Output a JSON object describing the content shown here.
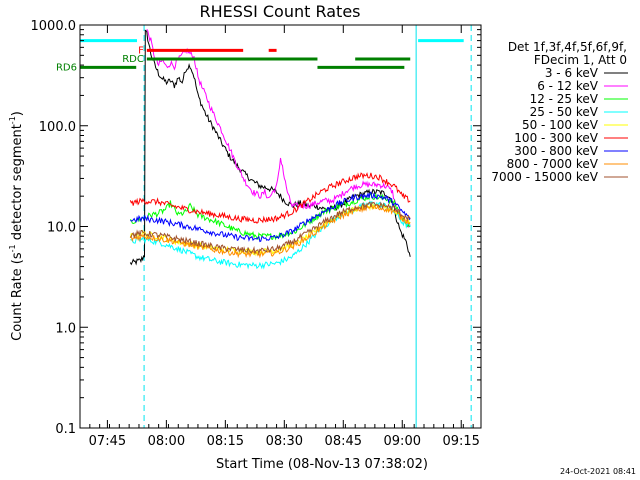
{
  "chart_data": {
    "type": "line",
    "title": "RHESSI Count Rates",
    "xlabel": "Start Time (08-Nov-13 07:38:02)",
    "ylabel": "Count Rate (s⁻¹ detector segment⁻¹)",
    "ylabel_main": "Count Rate (s",
    "ylabel_sup1": "-1",
    "ylabel_mid": " detector segment",
    "ylabel_sup2": "-1",
    "ylabel_end": ")",
    "yscale": "log",
    "ylim": [
      0.1,
      1000
    ],
    "xlim_minutes": [
      0,
      102
    ],
    "x_ticks": [
      {
        "label": "07:45",
        "min": 6.97
      },
      {
        "label": "08:00",
        "min": 21.97
      },
      {
        "label": "08:15",
        "min": 36.97
      },
      {
        "label": "08:30",
        "min": 51.97
      },
      {
        "label": "08:45",
        "min": 66.97
      },
      {
        "label": "09:00",
        "min": 81.97
      },
      {
        "label": "09:15",
        "min": 96.97
      }
    ],
    "y_ticks": [
      {
        "label": "0.1",
        "value": 0.1
      },
      {
        "label": "1.0",
        "value": 1
      },
      {
        "label": "10.0",
        "value": 10
      },
      {
        "label": "100.0",
        "value": 100
      },
      {
        "label": "1000.0",
        "value": 1000
      }
    ],
    "legend_header": [
      "Det 1f,3f,4f,5f,6f,9f,",
      "FDecim 1, Att 0"
    ],
    "series": [
      {
        "name": "3 - 6 keV",
        "color": "#000000",
        "points": [
          [
            12.8,
            4.3
          ],
          [
            15.5,
            4.6
          ],
          [
            16.4,
            5.2
          ],
          [
            16.6,
            850
          ],
          [
            17,
            820
          ],
          [
            18,
            520
          ],
          [
            19,
            400
          ],
          [
            20,
            330
          ],
          [
            21,
            290
          ],
          [
            22,
            270
          ],
          [
            23,
            280
          ],
          [
            24,
            250
          ],
          [
            25,
            300
          ],
          [
            26,
            270
          ],
          [
            27,
            370
          ],
          [
            28,
            400
          ],
          [
            29,
            310
          ],
          [
            30,
            200
          ],
          [
            31,
            160
          ],
          [
            32,
            130
          ],
          [
            33,
            110
          ],
          [
            34,
            95
          ],
          [
            35,
            80
          ],
          [
            36,
            68
          ],
          [
            38,
            50
          ],
          [
            40,
            40
          ],
          [
            42,
            33
          ],
          [
            44,
            28
          ],
          [
            46,
            25
          ],
          [
            48,
            24
          ],
          [
            50,
            22
          ],
          [
            51,
            20
          ],
          [
            52,
            18
          ],
          [
            53,
            17
          ],
          [
            54,
            16
          ],
          [
            56,
            17
          ],
          [
            58,
            16
          ],
          [
            60,
            16
          ],
          [
            62,
            15
          ],
          [
            64,
            15
          ],
          [
            66,
            16
          ],
          [
            68,
            18
          ],
          [
            70,
            20
          ],
          [
            72,
            21
          ],
          [
            74,
            22
          ],
          [
            76,
            22
          ],
          [
            78,
            21
          ],
          [
            79.5,
            18
          ],
          [
            80.5,
            12
          ],
          [
            81.5,
            9
          ],
          [
            83,
            7
          ],
          [
            84,
            5
          ]
        ]
      },
      {
        "name": "6 - 12 keV",
        "color": "#ff00ff",
        "points": [
          [
            17,
            900
          ],
          [
            18,
            700
          ],
          [
            19,
            480
          ],
          [
            20,
            400
          ],
          [
            21,
            450
          ],
          [
            22,
            380
          ],
          [
            23,
            420
          ],
          [
            24,
            390
          ],
          [
            25,
            450
          ],
          [
            26,
            500
          ],
          [
            27,
            560
          ],
          [
            28,
            520
          ],
          [
            29,
            480
          ],
          [
            30,
            310
          ],
          [
            31,
            240
          ],
          [
            32,
            200
          ],
          [
            33,
            160
          ],
          [
            34,
            130
          ],
          [
            36,
            90
          ],
          [
            38,
            60
          ],
          [
            40,
            40
          ],
          [
            42,
            28
          ],
          [
            44,
            22
          ],
          [
            46,
            20
          ],
          [
            47,
            22
          ],
          [
            48,
            19
          ],
          [
            50,
            25
          ],
          [
            50.5,
            32
          ],
          [
            51,
            48
          ],
          [
            51.5,
            40
          ],
          [
            52,
            30
          ],
          [
            53,
            20
          ],
          [
            54,
            16
          ],
          [
            56,
            16
          ],
          [
            58,
            16
          ],
          [
            60,
            17
          ],
          [
            62,
            18
          ],
          [
            64,
            18
          ],
          [
            66,
            20
          ],
          [
            68,
            23
          ],
          [
            70,
            25
          ],
          [
            72,
            26
          ],
          [
            74,
            26
          ],
          [
            76,
            26
          ],
          [
            78,
            25
          ],
          [
            79.5,
            22
          ],
          [
            80.5,
            15
          ],
          [
            82,
            12
          ],
          [
            84,
            10
          ]
        ]
      },
      {
        "name": "12 - 25 keV",
        "color": "#00ff00",
        "points": [
          [
            12.8,
            11
          ],
          [
            16,
            12
          ],
          [
            18,
            13
          ],
          [
            20,
            13.5
          ],
          [
            22,
            15
          ],
          [
            23,
            17
          ],
          [
            25,
            13
          ],
          [
            27,
            14
          ],
          [
            28,
            16
          ],
          [
            30,
            13
          ],
          [
            35,
            11
          ],
          [
            40,
            9
          ],
          [
            45,
            8
          ],
          [
            50,
            8
          ],
          [
            55,
            9
          ],
          [
            58,
            11
          ],
          [
            62,
            14
          ],
          [
            66,
            16
          ],
          [
            70,
            18
          ],
          [
            74,
            20
          ],
          [
            78,
            19
          ],
          [
            80,
            17
          ],
          [
            82,
            12
          ],
          [
            84,
            10
          ]
        ]
      },
      {
        "name": "25 - 50 keV",
        "color": "#00ffff",
        "points": [
          [
            12.8,
            7
          ],
          [
            16,
            7.5
          ],
          [
            20,
            7
          ],
          [
            25,
            6
          ],
          [
            30,
            5
          ],
          [
            35,
            4.5
          ],
          [
            40,
            4.2
          ],
          [
            45,
            4.1
          ],
          [
            50,
            4.3
          ],
          [
            54,
            5
          ],
          [
            58,
            7
          ],
          [
            62,
            10
          ],
          [
            66,
            13
          ],
          [
            70,
            15
          ],
          [
            74,
            17
          ],
          [
            78,
            16
          ],
          [
            80,
            14
          ],
          [
            82,
            11
          ],
          [
            84,
            10
          ]
        ]
      },
      {
        "name": "50 - 100 keV",
        "color": "#ffff00",
        "points": [
          [
            12.8,
            8
          ],
          [
            16,
            8.5
          ],
          [
            20,
            8
          ],
          [
            25,
            7
          ],
          [
            30,
            6.5
          ],
          [
            35,
            6
          ],
          [
            40,
            5.8
          ],
          [
            45,
            5.6
          ],
          [
            50,
            5.8
          ],
          [
            55,
            6.8
          ],
          [
            58,
            8
          ],
          [
            62,
            10.5
          ],
          [
            66,
            13
          ],
          [
            70,
            15
          ],
          [
            74,
            16
          ],
          [
            78,
            15.5
          ],
          [
            80,
            14
          ],
          [
            82,
            12
          ],
          [
            84,
            11
          ]
        ]
      },
      {
        "name": "100 - 300 keV",
        "color": "#ff0000",
        "points": [
          [
            12.8,
            17
          ],
          [
            16,
            18
          ],
          [
            20,
            17.5
          ],
          [
            25,
            15.5
          ],
          [
            30,
            14
          ],
          [
            35,
            13
          ],
          [
            40,
            12
          ],
          [
            45,
            11.5
          ],
          [
            50,
            12
          ],
          [
            54,
            14
          ],
          [
            58,
            18
          ],
          [
            62,
            23
          ],
          [
            66,
            27
          ],
          [
            70,
            31
          ],
          [
            72,
            32
          ],
          [
            74,
            32
          ],
          [
            76,
            31
          ],
          [
            78,
            28
          ],
          [
            80,
            25
          ],
          [
            82,
            20
          ],
          [
            84,
            18
          ]
        ]
      },
      {
        "name": "300 - 800 keV",
        "color": "#0000ff",
        "points": [
          [
            12.8,
            11.5
          ],
          [
            16,
            12
          ],
          [
            20,
            11.5
          ],
          [
            25,
            10.5
          ],
          [
            30,
            9.5
          ],
          [
            35,
            8.5
          ],
          [
            40,
            7.8
          ],
          [
            45,
            7.5
          ],
          [
            50,
            7.8
          ],
          [
            54,
            9
          ],
          [
            58,
            11.5
          ],
          [
            62,
            14
          ],
          [
            66,
            17
          ],
          [
            70,
            19.5
          ],
          [
            74,
            20.5
          ],
          [
            76,
            20
          ],
          [
            78,
            19
          ],
          [
            80,
            17
          ],
          [
            82,
            14
          ],
          [
            84,
            12
          ]
        ]
      },
      {
        "name": "800 - 7000 keV",
        "color": "#ff8c00",
        "points": [
          [
            12.8,
            7.5
          ],
          [
            16,
            8
          ],
          [
            20,
            7.6
          ],
          [
            25,
            7
          ],
          [
            30,
            6.3
          ],
          [
            35,
            5.8
          ],
          [
            40,
            5.4
          ],
          [
            45,
            5.3
          ],
          [
            50,
            5.5
          ],
          [
            54,
            6.3
          ],
          [
            58,
            7.8
          ],
          [
            62,
            10
          ],
          [
            66,
            12.5
          ],
          [
            70,
            14.5
          ],
          [
            74,
            15.5
          ],
          [
            78,
            15
          ],
          [
            80,
            14
          ],
          [
            82,
            12
          ],
          [
            84,
            11
          ]
        ]
      },
      {
        "name": "7000 - 15000 keV",
        "color": "#a0522d",
        "points": [
          [
            12.8,
            8.2
          ],
          [
            16,
            8.6
          ],
          [
            20,
            8.2
          ],
          [
            25,
            7.5
          ],
          [
            30,
            6.8
          ],
          [
            35,
            6.2
          ],
          [
            40,
            5.9
          ],
          [
            45,
            5.7
          ],
          [
            50,
            6
          ],
          [
            54,
            7
          ],
          [
            58,
            8.7
          ],
          [
            62,
            11
          ],
          [
            66,
            13.5
          ],
          [
            70,
            15.5
          ],
          [
            74,
            16.5
          ],
          [
            78,
            16
          ],
          [
            80,
            15
          ],
          [
            82,
            13
          ],
          [
            84,
            12
          ]
        ]
      }
    ],
    "flag_bars": [
      {
        "label": "",
        "color": "#00ffff",
        "y_value": 700,
        "segments": [
          [
            0,
            14.5
          ],
          [
            86,
            97.6
          ]
        ]
      },
      {
        "label": "F",
        "color": "#ff0000",
        "y_value": 560,
        "segments": [
          [
            17,
            41.5
          ],
          [
            48,
            50
          ]
        ]
      },
      {
        "label": "RDC",
        "color": "#008000",
        "y_value": 460,
        "segments": [
          [
            17,
            60.4
          ],
          [
            70,
            84
          ]
        ]
      },
      {
        "label": "RD6",
        "color": "#008000",
        "y_value": 380,
        "segments": [
          [
            0,
            14.3
          ],
          [
            60.4,
            82.5
          ]
        ]
      }
    ],
    "vlines": [
      {
        "min": 0,
        "style": "solid"
      },
      {
        "min": 16.3,
        "style": "dashed"
      },
      {
        "min": 85.5,
        "style": "solid"
      },
      {
        "min": 99.5,
        "style": "dashed"
      }
    ]
  },
  "footer": {
    "timestamp": "24-Oct-2021 08:41"
  }
}
